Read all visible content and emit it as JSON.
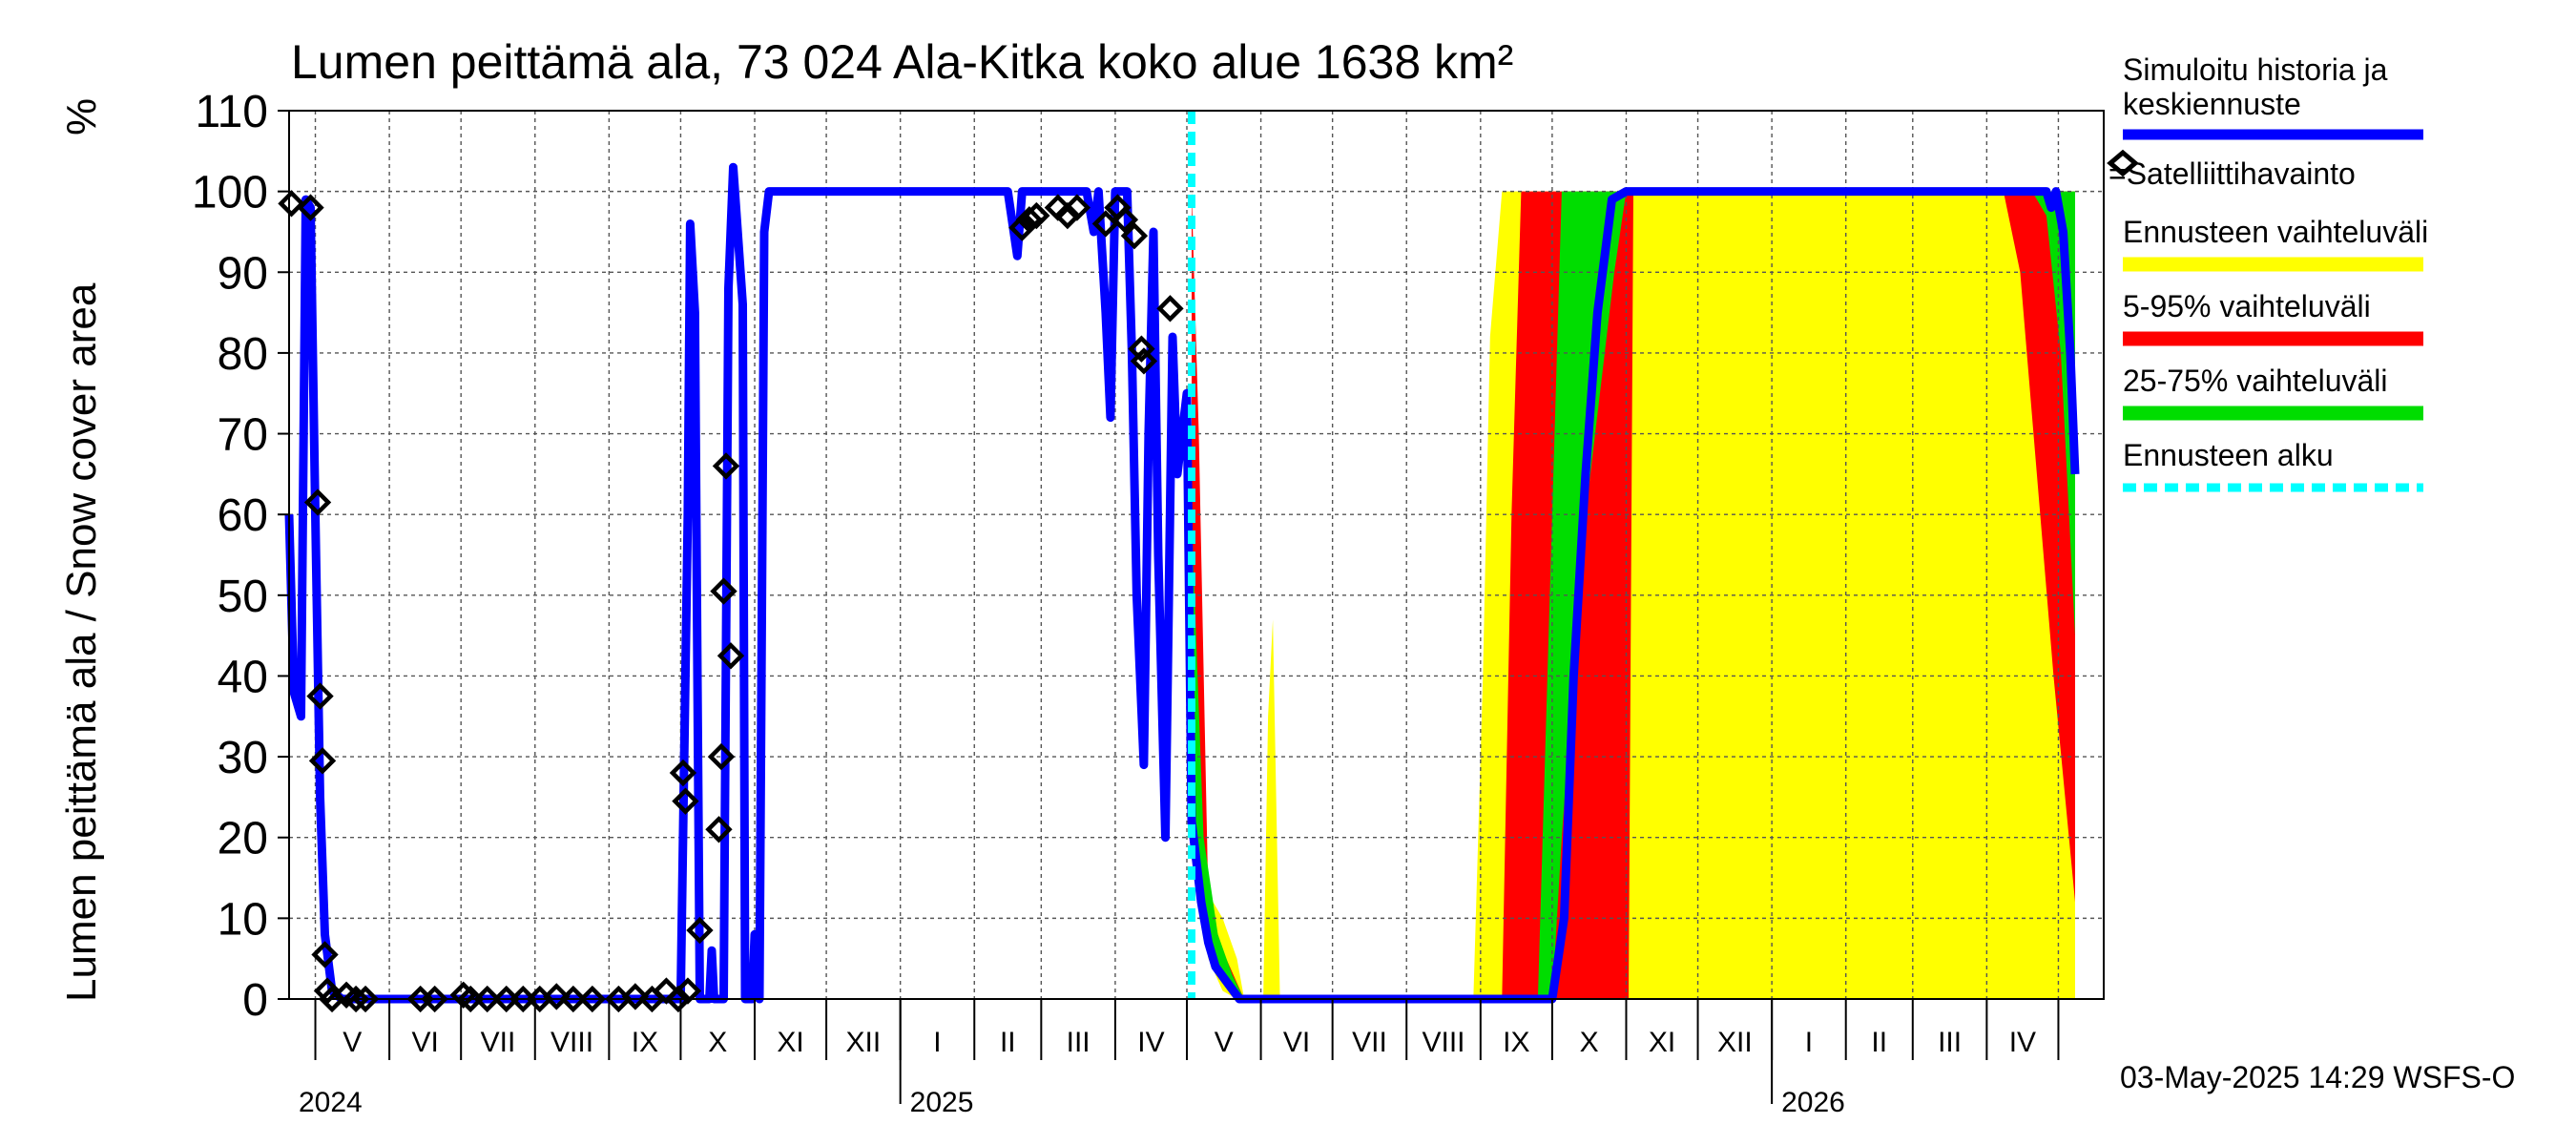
{
  "chart_data": {
    "type": "line",
    "title": "Lumen peittämä ala, 73 024 Ala-Kitka koko alue 1638 km²",
    "ylabel": "Lumen peittämä ala / Snow cover area",
    "yunit": "%",
    "ylim": [
      0,
      110
    ],
    "yticks": [
      0,
      10,
      20,
      30,
      40,
      50,
      60,
      70,
      80,
      90,
      100,
      110
    ],
    "xlim": [
      "2024-04-20",
      "2026-05-20"
    ],
    "grid": true,
    "legend_position": "right",
    "months": [
      {
        "label": "V",
        "start": "2024-05-01"
      },
      {
        "label": "VI",
        "start": "2024-06-01"
      },
      {
        "label": "VII",
        "start": "2024-07-01"
      },
      {
        "label": "VIII",
        "start": "2024-08-01"
      },
      {
        "label": "IX",
        "start": "2024-09-01"
      },
      {
        "label": "X",
        "start": "2024-10-01"
      },
      {
        "label": "XI",
        "start": "2024-11-01"
      },
      {
        "label": "XII",
        "start": "2024-12-01"
      },
      {
        "label": "I",
        "start": "2025-01-01"
      },
      {
        "label": "II",
        "start": "2025-02-01"
      },
      {
        "label": "III",
        "start": "2025-03-01"
      },
      {
        "label": "IV",
        "start": "2025-04-01"
      },
      {
        "label": "V",
        "start": "2025-05-01"
      },
      {
        "label": "VI",
        "start": "2025-06-01"
      },
      {
        "label": "VII",
        "start": "2025-07-01"
      },
      {
        "label": "VIII",
        "start": "2025-08-01"
      },
      {
        "label": "IX",
        "start": "2025-09-01"
      },
      {
        "label": "X",
        "start": "2025-10-01"
      },
      {
        "label": "XI",
        "start": "2025-11-01"
      },
      {
        "label": "XII",
        "start": "2025-12-01"
      },
      {
        "label": "I",
        "start": "2026-01-01"
      },
      {
        "label": "II",
        "start": "2026-02-01"
      },
      {
        "label": "III",
        "start": "2026-03-01"
      },
      {
        "label": "IV",
        "start": "2026-04-01"
      },
      {
        "label": "",
        "start": "2026-05-01"
      }
    ],
    "years": [
      {
        "label": "2024",
        "at": "2024-04-20"
      },
      {
        "label": "2025",
        "at": "2025-01-01"
      },
      {
        "label": "2026",
        "at": "2026-01-01"
      }
    ],
    "forecast_start": "2025-05-03",
    "series": [
      {
        "name": "Simuloitu historia ja keskiennuste",
        "color": "#0000ff",
        "points": [
          [
            "2024-04-20",
            60
          ],
          [
            "2024-04-22",
            38
          ],
          [
            "2024-04-25",
            35
          ],
          [
            "2024-04-27",
            99
          ],
          [
            "2024-04-29",
            98
          ],
          [
            "2024-05-01",
            60
          ],
          [
            "2024-05-03",
            25
          ],
          [
            "2024-05-05",
            8
          ],
          [
            "2024-05-08",
            1
          ],
          [
            "2024-05-12",
            0
          ],
          [
            "2024-10-01",
            0
          ],
          [
            "2024-10-04",
            60
          ],
          [
            "2024-10-05",
            96
          ],
          [
            "2024-10-07",
            85
          ],
          [
            "2024-10-08",
            40
          ],
          [
            "2024-10-09",
            0
          ],
          [
            "2024-10-13",
            0
          ],
          [
            "2024-10-14",
            6
          ],
          [
            "2024-10-15",
            0
          ],
          [
            "2024-10-19",
            0
          ],
          [
            "2024-10-21",
            88
          ],
          [
            "2024-10-23",
            103
          ],
          [
            "2024-10-27",
            86
          ],
          [
            "2024-10-28",
            0
          ],
          [
            "2024-10-31",
            0
          ],
          [
            "2024-11-01",
            8
          ],
          [
            "2024-11-03",
            0
          ],
          [
            "2024-11-05",
            95
          ],
          [
            "2024-11-07",
            100
          ],
          [
            "2025-02-15",
            100
          ],
          [
            "2025-02-19",
            92
          ],
          [
            "2025-02-21",
            100
          ],
          [
            "2025-03-20",
            100
          ],
          [
            "2025-03-23",
            95
          ],
          [
            "2025-03-25",
            100
          ],
          [
            "2025-03-28",
            85
          ],
          [
            "2025-03-30",
            72
          ],
          [
            "2025-04-01",
            100
          ],
          [
            "2025-04-06",
            100
          ],
          [
            "2025-04-08",
            80
          ],
          [
            "2025-04-10",
            50
          ],
          [
            "2025-04-13",
            29
          ],
          [
            "2025-04-15",
            70
          ],
          [
            "2025-04-17",
            95
          ],
          [
            "2025-04-19",
            55
          ],
          [
            "2025-04-22",
            20
          ],
          [
            "2025-04-25",
            82
          ],
          [
            "2025-04-27",
            65
          ],
          [
            "2025-05-01",
            75
          ],
          [
            "2025-05-03",
            22
          ],
          [
            "2025-05-05",
            17
          ],
          [
            "2025-05-07",
            12
          ],
          [
            "2025-05-10",
            7
          ],
          [
            "2025-05-13",
            4
          ],
          [
            "2025-05-18",
            2
          ],
          [
            "2025-05-23",
            0
          ],
          [
            "2025-10-01",
            0
          ],
          [
            "2025-10-06",
            10
          ],
          [
            "2025-10-10",
            40
          ],
          [
            "2025-10-15",
            65
          ],
          [
            "2025-10-20",
            85
          ],
          [
            "2025-10-26",
            99
          ],
          [
            "2025-11-01",
            100
          ],
          [
            "2026-04-26",
            100
          ],
          [
            "2026-04-28",
            98
          ],
          [
            "2026-04-30",
            100
          ],
          [
            "2026-05-03",
            95
          ],
          [
            "2026-05-06",
            80
          ],
          [
            "2026-05-08",
            65
          ]
        ]
      }
    ],
    "bands": [
      {
        "name": "Ennusteen vaihteluväli",
        "color": "#ffff00",
        "points": [
          [
            "2025-05-03",
            22,
            100
          ],
          [
            "2025-05-06",
            12,
            60
          ],
          [
            "2025-05-10",
            5,
            13
          ],
          [
            "2025-05-16",
            1,
            10
          ],
          [
            "2025-05-22",
            0,
            5
          ],
          [
            "2025-05-25",
            0,
            0
          ],
          [
            "2025-06-02",
            0,
            0
          ],
          [
            "2025-06-04",
            0,
            35
          ],
          [
            "2025-06-06",
            0,
            47
          ],
          [
            "2025-06-09",
            0,
            0
          ],
          [
            "2025-08-29",
            0,
            0
          ],
          [
            "2025-09-02",
            0,
            40
          ],
          [
            "2025-09-05",
            0,
            82
          ],
          [
            "2025-09-10",
            0,
            100
          ],
          [
            "2026-05-08",
            0,
            100
          ]
        ]
      },
      {
        "name": "5-95% vaihteluväli",
        "color": "#ff0000",
        "points": [
          [
            "2025-05-03",
            22,
            100
          ],
          [
            "2025-05-06",
            14,
            70
          ],
          [
            "2025-05-10",
            6,
            12
          ],
          [
            "2025-05-16",
            2,
            6
          ],
          [
            "2025-05-22",
            0,
            2
          ],
          [
            "2025-05-25",
            0,
            0
          ],
          [
            "2025-09-10",
            0,
            0
          ],
          [
            "2025-09-14",
            0,
            60
          ],
          [
            "2025-09-18",
            0,
            100
          ],
          [
            "2025-11-02",
            0,
            100
          ],
          [
            "2025-11-04",
            100,
            100
          ],
          [
            "2026-04-08",
            100,
            100
          ],
          [
            "2026-04-15",
            90,
            100
          ],
          [
            "2026-04-22",
            65,
            100
          ],
          [
            "2026-04-29",
            40,
            100
          ],
          [
            "2026-05-08",
            12,
            100
          ]
        ]
      },
      {
        "name": "25-75% vaihteluväli",
        "color": "#00dd00",
        "points": [
          [
            "2025-05-03",
            22,
            60
          ],
          [
            "2025-05-08",
            10,
            20
          ],
          [
            "2025-05-14",
            4,
            8
          ],
          [
            "2025-05-20",
            1,
            3
          ],
          [
            "2025-05-25",
            0,
            0
          ],
          [
            "2025-09-25",
            0,
            0
          ],
          [
            "2025-10-01",
            0,
            60
          ],
          [
            "2025-10-05",
            20,
            100
          ],
          [
            "2025-10-15",
            60,
            100
          ],
          [
            "2025-10-27",
            90,
            100
          ],
          [
            "2025-11-01",
            100,
            100
          ],
          [
            "2026-04-20",
            100,
            100
          ],
          [
            "2026-04-26",
            97,
            100
          ],
          [
            "2026-05-02",
            80,
            100
          ],
          [
            "2026-05-08",
            45,
            100
          ]
        ]
      }
    ],
    "satellite": {
      "name": "=Satelliittihavainto",
      "points": [
        [
          "2024-04-21",
          98.5
        ],
        [
          "2024-04-29",
          98
        ],
        [
          "2024-05-02",
          61.5
        ],
        [
          "2024-05-03",
          37.5
        ],
        [
          "2024-05-04",
          29.5
        ],
        [
          "2024-05-05",
          5.5
        ],
        [
          "2024-05-06",
          1
        ],
        [
          "2024-05-08",
          0
        ],
        [
          "2024-05-14",
          0.5
        ],
        [
          "2024-05-18",
          0
        ],
        [
          "2024-05-22",
          0
        ],
        [
          "2024-06-14",
          0
        ],
        [
          "2024-06-20",
          0
        ],
        [
          "2024-07-02",
          0.5
        ],
        [
          "2024-07-05",
          0
        ],
        [
          "2024-07-12",
          0
        ],
        [
          "2024-07-20",
          0
        ],
        [
          "2024-07-27",
          0
        ],
        [
          "2024-08-03",
          0
        ],
        [
          "2024-08-10",
          0.3
        ],
        [
          "2024-08-17",
          0
        ],
        [
          "2024-08-25",
          0
        ],
        [
          "2024-09-05",
          0
        ],
        [
          "2024-09-12",
          0.3
        ],
        [
          "2024-09-19",
          0
        ],
        [
          "2024-09-25",
          1
        ],
        [
          "2024-09-30",
          0
        ],
        [
          "2024-10-02",
          28
        ],
        [
          "2024-10-03",
          24.5
        ],
        [
          "2024-10-04",
          1
        ],
        [
          "2024-10-09",
          8.5
        ],
        [
          "2024-10-17",
          21
        ],
        [
          "2024-10-18",
          30
        ],
        [
          "2024-10-19",
          50.5
        ],
        [
          "2024-10-20",
          66
        ],
        [
          "2024-10-22",
          42.5
        ],
        [
          "2025-02-21",
          95.5
        ],
        [
          "2025-02-24",
          96.5
        ],
        [
          "2025-02-27",
          97
        ],
        [
          "2025-03-08",
          98
        ],
        [
          "2025-03-12",
          97
        ],
        [
          "2025-03-16",
          98
        ],
        [
          "2025-03-28",
          96
        ],
        [
          "2025-04-02",
          98
        ],
        [
          "2025-04-05",
          96.5
        ],
        [
          "2025-04-09",
          94.5
        ],
        [
          "2025-04-12",
          80.5
        ],
        [
          "2025-04-13",
          79
        ],
        [
          "2025-04-24",
          85.5
        ]
      ]
    },
    "legend": {
      "series": "Simuloitu historia ja keskiennuste",
      "satellite": "=Satelliittihavainto",
      "band_yellow": "Ennusteen vaihteluväli",
      "band_red": "5-95% vaihteluväli",
      "band_green": "25-75% vaihteluväli",
      "forecast_start": "Ennusteen alku"
    },
    "footer": "03-May-2025 14:29 WSFS-O"
  }
}
